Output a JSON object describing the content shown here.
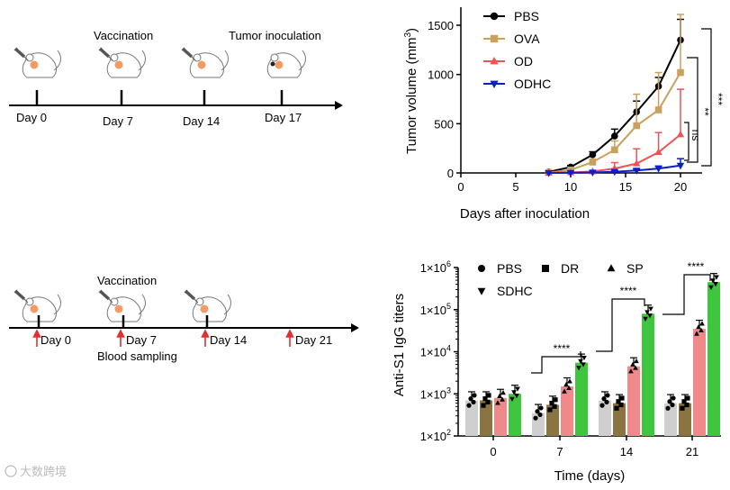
{
  "timeline_a": {
    "events": [
      "Vaccination",
      "Tumor inoculation"
    ],
    "days": [
      "Day 0",
      "Day 7",
      "Day 14",
      "Day 17"
    ]
  },
  "timeline_b": {
    "event": "Vaccination",
    "sampling": "Blood sampling",
    "days": [
      "Day 0",
      "Day 7",
      "Day 14",
      "Day 21"
    ]
  },
  "watermark": "大数跨境",
  "colors": {
    "PBS": "#000000",
    "OVA": "#c8a15f",
    "OD": "#ee5454",
    "ODHC": "#0a1fc8",
    "bar_PBS": "#cfcfcf",
    "bar_DR": "#8a7442",
    "bar_SP": "#f08a8a",
    "bar_SDHC": "#3ec63e"
  },
  "chart_data": [
    {
      "type": "line",
      "title": "",
      "xlabel": "Days after inoculation",
      "ylabel": "Tumor volume (mm³)",
      "ylabel_base": "Tumor volume (mm",
      "ylabel_sup": "3",
      "ylabel_end": ")",
      "xlim": [
        0,
        21
      ],
      "ylim": [
        0,
        1650
      ],
      "xticks": [
        0,
        5,
        10,
        15,
        20
      ],
      "yticks": [
        0,
        500,
        1000,
        1500
      ],
      "legend": "top-left",
      "x": [
        8,
        10,
        12,
        14,
        16,
        18,
        20
      ],
      "series": [
        {
          "name": "PBS",
          "marker": "circle",
          "values": [
            10,
            60,
            185,
            375,
            620,
            880,
            1350
          ],
          "err": [
            5,
            15,
            30,
            70,
            110,
            90,
            210
          ]
        },
        {
          "name": "OVA",
          "marker": "square",
          "values": [
            5,
            30,
            110,
            235,
            480,
            640,
            1020
          ],
          "err": [
            5,
            10,
            30,
            90,
            320,
            380,
            590
          ]
        },
        {
          "name": "OD",
          "marker": "triangle",
          "values": [
            2,
            5,
            15,
            45,
            95,
            210,
            390
          ],
          "err": [
            3,
            8,
            10,
            60,
            150,
            200,
            460
          ]
        },
        {
          "name": "ODHC",
          "marker": "tri-down",
          "values": [
            0,
            2,
            5,
            12,
            25,
            45,
            75
          ],
          "err": [
            2,
            3,
            5,
            10,
            15,
            25,
            70
          ]
        }
      ],
      "annotations": [
        "ns",
        "**",
        "***"
      ]
    },
    {
      "type": "bar",
      "title": "",
      "xlabel": "Time (days)",
      "ylabel": "Anti-S1 IgG titers",
      "yscale": "log",
      "ylim": [
        100,
        1000000
      ],
      "yticks": [
        {
          "base": "1×10",
          "exp": "2"
        },
        {
          "base": "1×10",
          "exp": "3"
        },
        {
          "base": "1×10",
          "exp": "4"
        },
        {
          "base": "1×10",
          "exp": "5"
        },
        {
          "base": "1×10",
          "exp": "6"
        }
      ],
      "categories": [
        "0",
        "7",
        "14",
        "21"
      ],
      "legend": "top",
      "series": [
        {
          "name": "PBS",
          "marker": "circle",
          "values": [
            700,
            350,
            700,
            600
          ]
        },
        {
          "name": "DR",
          "marker": "square",
          "values": [
            700,
            550,
            600,
            600
          ]
        },
        {
          "name": "SP",
          "marker": "triangle",
          "values": [
            800,
            1500,
            4500,
            35000
          ]
        },
        {
          "name": "SDHC",
          "marker": "tri-down",
          "values": [
            1000,
            5500,
            80000,
            450000
          ]
        }
      ],
      "annotations": [
        "****",
        "****",
        "****"
      ]
    }
  ]
}
